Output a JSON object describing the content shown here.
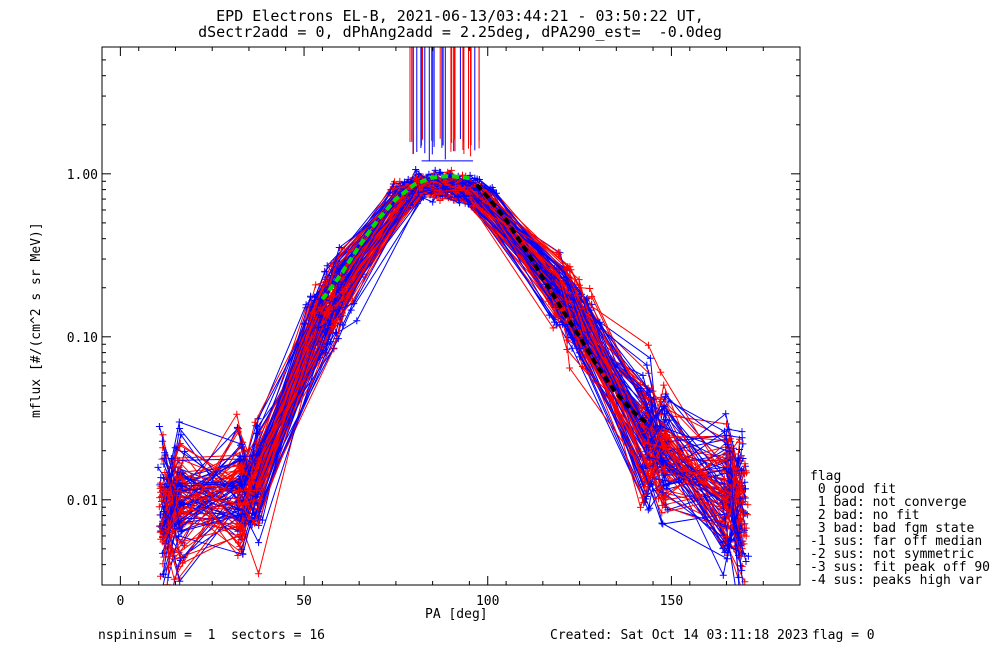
{
  "chart_data": {
    "type": "line",
    "title_line1": "EPD Electrons EL-B, 2021-06-13/03:44:21 - 03:50:22 UT,",
    "title_line2": "dSectr2add = 0, dPhAng2add = 2.25deg, dPA290_est=  -0.0deg",
    "xlabel": "PA [deg]",
    "ylabel": "mflux [#/(cm^2 s sr MeV)]",
    "xlim": [
      -5,
      185
    ],
    "ylim": [
      0.003,
      6
    ],
    "yscale": "log",
    "x_ticks": [
      0,
      50,
      100,
      150
    ],
    "y_ticks": [
      {
        "value": 0.01,
        "label": "0.01"
      },
      {
        "value": 0.1,
        "label": "0.10"
      },
      {
        "value": 1.0,
        "label": "1.00"
      }
    ],
    "series_colors": {
      "red": "#ff0000",
      "blue": "#0000ff",
      "fit_green": "#00dd00",
      "fit_black": "#000000"
    },
    "approx_profile": {
      "pa": [
        12,
        16,
        33,
        37,
        55,
        60,
        78,
        82,
        88,
        93,
        98,
        120,
        125,
        143,
        148,
        165,
        169
      ],
      "flux": [
        0.0085,
        0.0095,
        0.012,
        0.013,
        0.13,
        0.2,
        0.75,
        0.85,
        0.85,
        0.82,
        0.72,
        0.2,
        0.12,
        0.025,
        0.02,
        0.011,
        0.009
      ]
    },
    "fit_green": {
      "pa": [
        55,
        60,
        65,
        70,
        75,
        80,
        85,
        90,
        95
      ],
      "flux": [
        0.17,
        0.24,
        0.36,
        0.52,
        0.7,
        0.86,
        0.95,
        0.97,
        0.94
      ]
    },
    "fit_black": {
      "pa": [
        97,
        100,
        105,
        110,
        115,
        120,
        125,
        130,
        135,
        140,
        143
      ],
      "flux": [
        0.86,
        0.72,
        0.52,
        0.35,
        0.23,
        0.15,
        0.1,
        0.065,
        0.045,
        0.034,
        0.03
      ]
    },
    "legend": {
      "placement": "right",
      "title": "flag",
      "entries": [
        " 0 good fit",
        " 1 bad: not converge",
        " 2 bad: no fit",
        " 3 bad: bad fgm state",
        "-1 sus: far off median",
        "-2 sus: not symmetric",
        "-3 sus: fit peak off 90",
        "-4 sus: peaks high var"
      ]
    }
  },
  "footer": {
    "left": "nspininsum =  1  sectors = 16",
    "created": "Created: Sat Oct 14 03:11:18 2023",
    "flag": "flag = 0"
  }
}
